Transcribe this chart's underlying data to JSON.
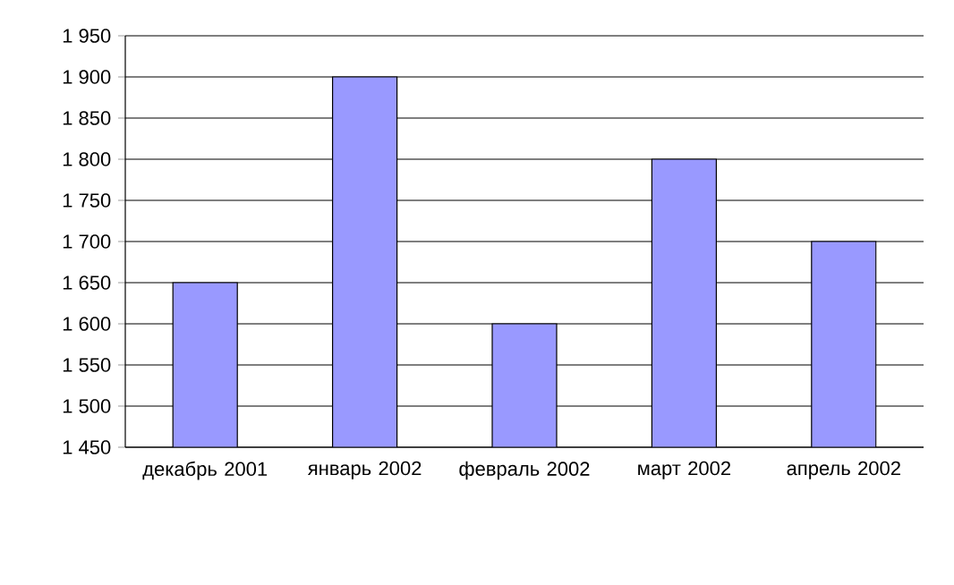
{
  "chart_data": {
    "type": "bar",
    "categories": [
      "декабрь 2001",
      "январь 2002",
      "февраль 2002",
      "март 2002",
      "апрель 2002"
    ],
    "values": [
      1650,
      1900,
      1600,
      1800,
      1700
    ],
    "color": "#9999ff",
    "ylim": [
      1450,
      1950
    ],
    "yticks": [
      {
        "value": 1450,
        "label": "1 450"
      },
      {
        "value": 1500,
        "label": "1 500"
      },
      {
        "value": 1550,
        "label": "1 550"
      },
      {
        "value": 1600,
        "label": "1 600"
      },
      {
        "value": 1650,
        "label": "1 650"
      },
      {
        "value": 1700,
        "label": "1 700"
      },
      {
        "value": 1750,
        "label": "1 750"
      },
      {
        "value": 1800,
        "label": "1 800"
      },
      {
        "value": 1850,
        "label": "1 850"
      },
      {
        "value": 1900,
        "label": "1 900"
      },
      {
        "value": 1950,
        "label": "1 950"
      }
    ],
    "grid": true
  }
}
